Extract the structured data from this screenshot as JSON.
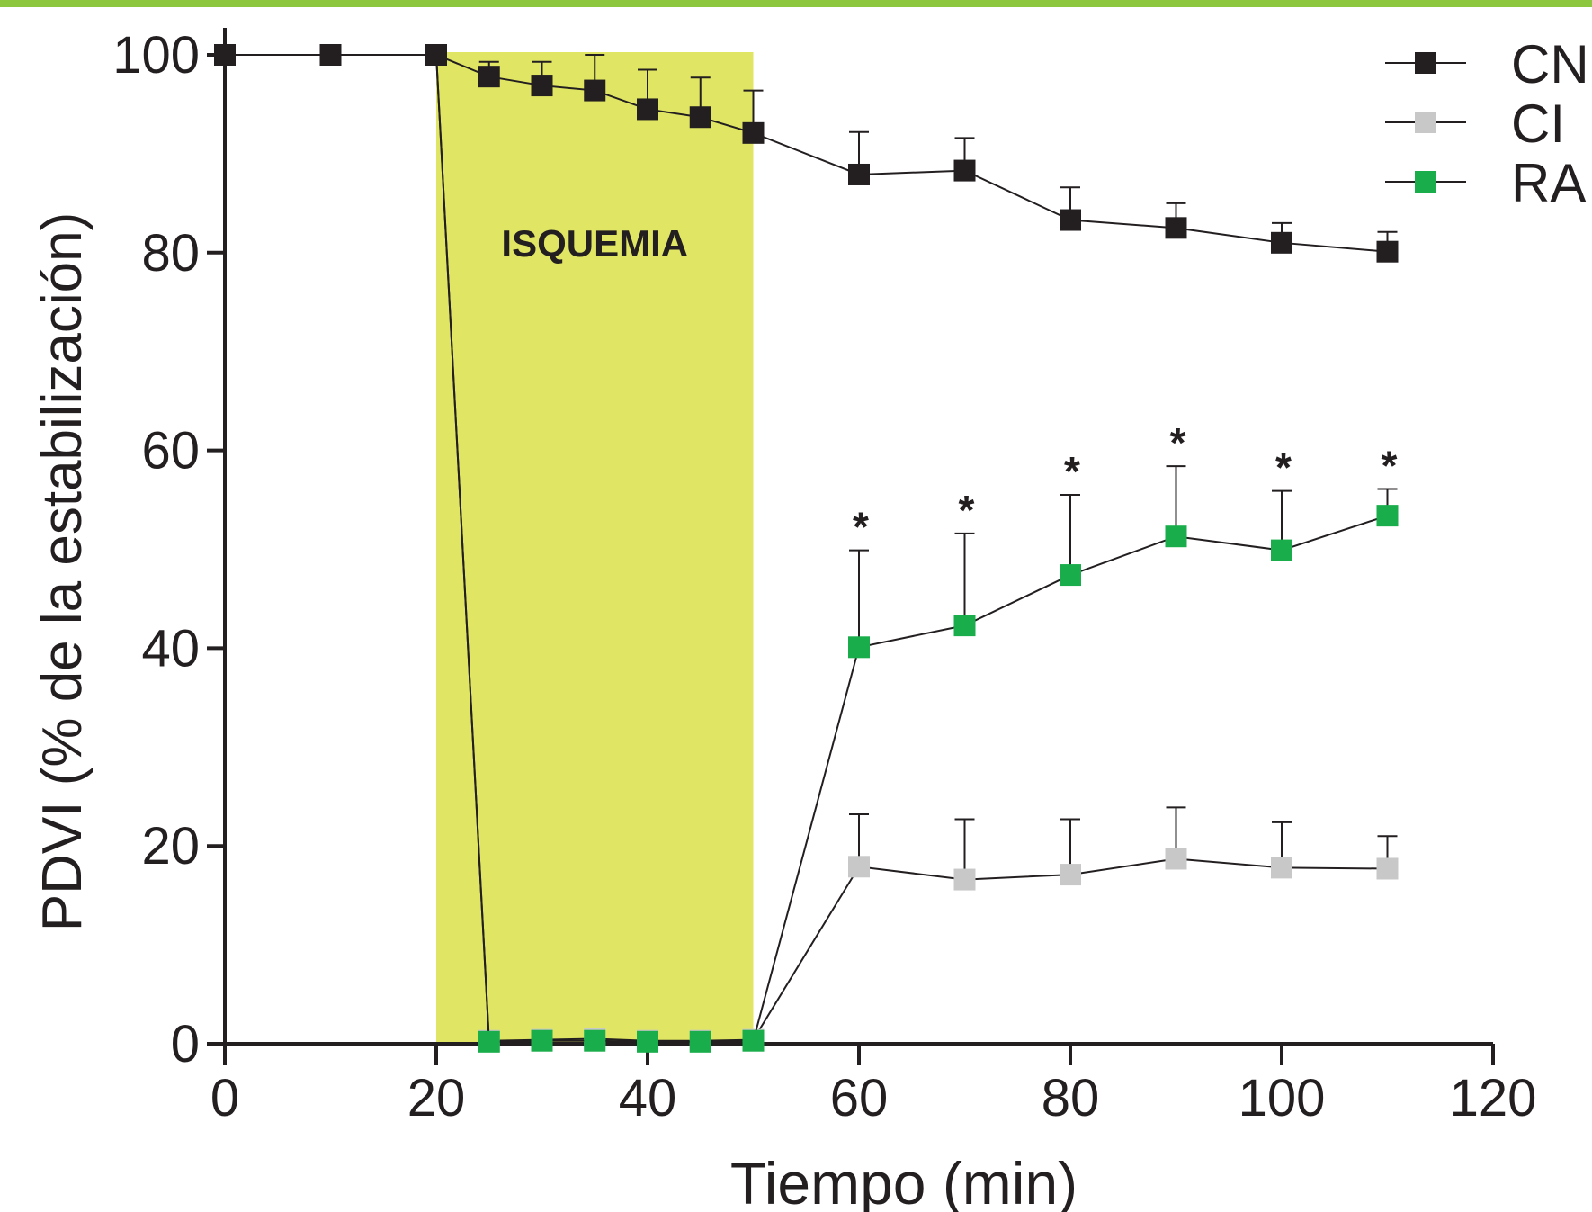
{
  "colors": {
    "top_band": "#8dc63f",
    "isquemia_region": "#e0e664",
    "axis": "#231f20",
    "series_CN": "#231f20",
    "series_CI": "#c8c8c8",
    "series_RA": "#1aad4b"
  },
  "chart_data": {
    "type": "line",
    "xlabel": "Tiempo (min)",
    "ylabel": "PDVI (% de la estabilización)",
    "xlim": [
      0,
      120
    ],
    "ylim": [
      0,
      100
    ],
    "xticks": [
      0,
      20,
      40,
      60,
      80,
      100,
      120
    ],
    "yticks": [
      0,
      20,
      40,
      60,
      80,
      100
    ],
    "grid": false,
    "legend_position": "top-right",
    "shaded_region": {
      "label": "ISQUEMIA",
      "x_start": 20,
      "x_end": 50
    },
    "significance_marker": "*",
    "significant_x": [
      60,
      70,
      80,
      90,
      100,
      110
    ],
    "series": [
      {
        "name": "CN",
        "x": [
          0,
          10,
          20,
          25,
          30,
          35,
          40,
          45,
          50,
          60,
          70,
          80,
          90,
          100,
          110
        ],
        "values": [
          100,
          100,
          100,
          97.8,
          96.9,
          96.4,
          94.5,
          93.7,
          92.1,
          87.9,
          88.3,
          83.3,
          82.5,
          81.0,
          80.1
        ],
        "error": [
          0,
          0,
          0,
          1.5,
          2.4,
          3.6,
          4.0,
          4.0,
          4.3,
          4.3,
          3.3,
          3.3,
          2.5,
          2.0,
          2.0
        ]
      },
      {
        "name": "CI",
        "x": [
          20,
          25,
          30,
          35,
          40,
          45,
          50,
          60,
          70,
          80,
          90,
          100,
          110
        ],
        "values": [
          100,
          0.3,
          0.4,
          0.5,
          0.3,
          0.3,
          0.4,
          17.9,
          16.6,
          17.1,
          18.7,
          17.8,
          17.7
        ],
        "error": [
          0,
          0,
          0.8,
          0.8,
          0,
          0,
          0,
          5.3,
          6.1,
          5.6,
          5.2,
          4.6,
          3.3
        ]
      },
      {
        "name": "RA",
        "x": [
          20,
          25,
          30,
          35,
          40,
          45,
          50,
          60,
          70,
          80,
          90,
          100,
          110
        ],
        "values": [
          100,
          0.2,
          0.3,
          0.3,
          0.2,
          0.2,
          0.3,
          40.1,
          42.3,
          47.4,
          51.3,
          49.9,
          53.4
        ],
        "error": [
          0,
          0,
          0,
          0,
          0,
          0,
          0,
          9.8,
          9.3,
          8.1,
          7.1,
          6.0,
          2.7
        ]
      }
    ]
  }
}
